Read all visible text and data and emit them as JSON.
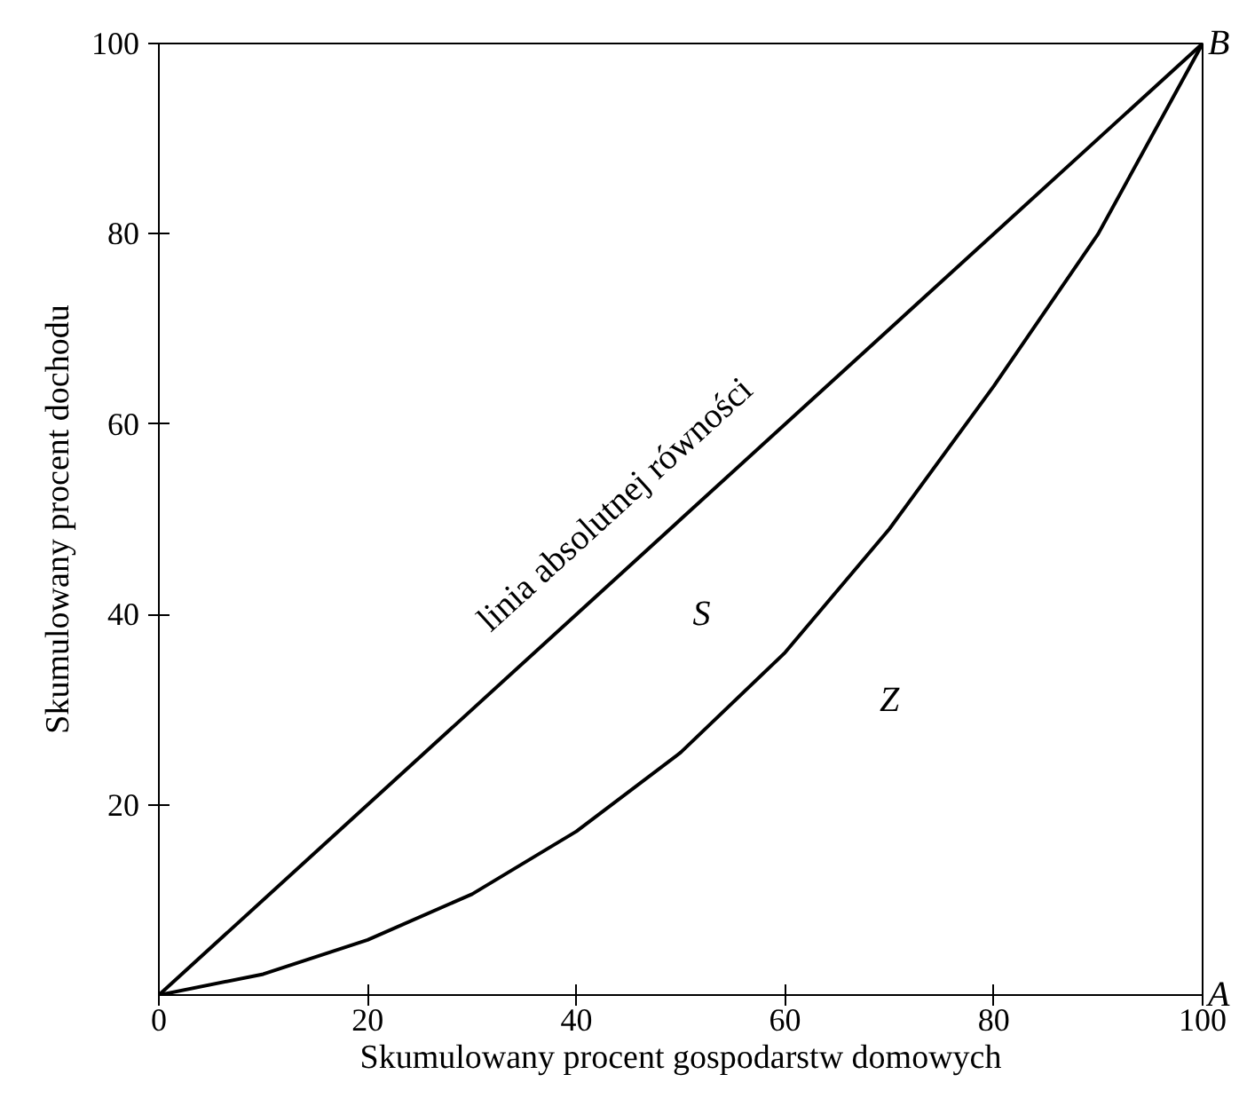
{
  "chart_data": {
    "type": "line",
    "xlabel": "Skumulowany procent gospodarstw domowych",
    "ylabel": "Skumulowany procent dochodu",
    "series": [
      {
        "color": "#000000",
        "x": [
          0,
          100
        ],
        "values": [
          0,
          100
        ]
      },
      {
        "color": "#000000",
        "x": [
          0,
          10,
          20,
          30,
          40,
          50,
          60,
          70,
          80,
          90,
          100
        ],
        "values": [
          0,
          2.2,
          5.8,
          10.6,
          17.2,
          25.5,
          36,
          49,
          64,
          80,
          100
        ]
      }
    ],
    "xlim": [
      0,
      100
    ],
    "ylim": [
      0,
      100
    ],
    "xticks": [
      0,
      20,
      40,
      60,
      80,
      100
    ],
    "yticks": [
      20,
      40,
      60,
      80,
      100
    ],
    "annotations": [
      "linia absolutnej równości",
      "S",
      "Z",
      "A",
      "B"
    ],
    "grid": false,
    "marker": "none",
    "line_style": "solid"
  }
}
